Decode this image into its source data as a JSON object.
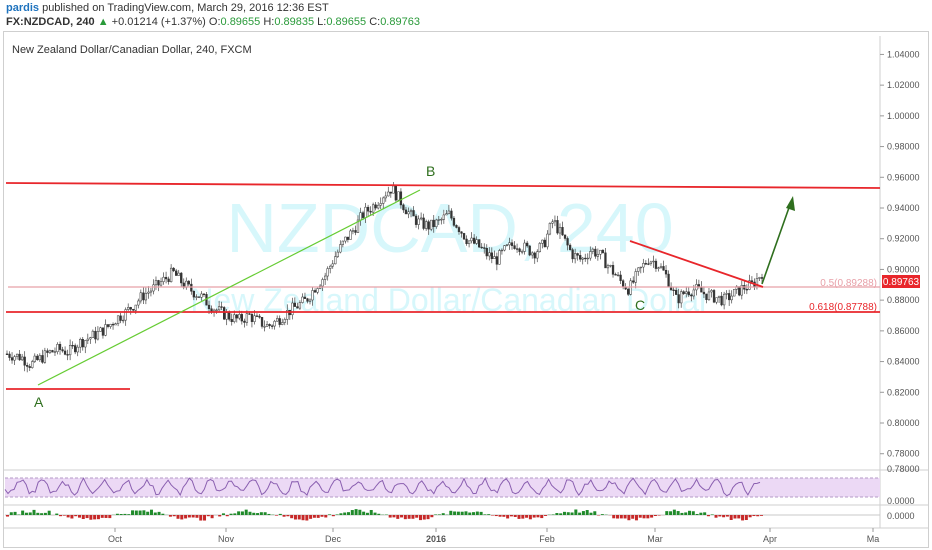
{
  "header": {
    "author": "pardis",
    "published_text": " published on TradingView.com, March 29, 2016 12:36 EST",
    "symbol": "FX:NZDCAD, 240",
    "change_arrow": "▲",
    "change": "+0.01214 (+1.37%)",
    "o_label": "O:",
    "o_value": "0.89655",
    "h_label": "H:",
    "h_value": "0.89835",
    "l_label": "L:",
    "l_value": "0.89655",
    "c_label": "C:",
    "c_value": "0.89763"
  },
  "chart_data": {
    "type": "candlestick",
    "title": "New Zealand Dollar/Canadian Dollar, 240, FXCM",
    "watermark_symbol": "NZDCAD, 240",
    "watermark_name": "New Zealand Dollar/Canadian Dollar",
    "y_ticks": [
      "1.04000",
      "1.02000",
      "1.00000",
      "0.98000",
      "0.96000",
      "0.94000",
      "0.92000",
      "0.90000",
      "0.88000",
      "0.86000",
      "0.84000",
      "0.82000",
      "0.80000",
      "0.78000"
    ],
    "y_tick_values": [
      1.04,
      1.02,
      1.0,
      0.98,
      0.96,
      0.94,
      0.92,
      0.9,
      0.88,
      0.86,
      0.84,
      0.82,
      0.8,
      0.78
    ],
    "ylim": [
      0.772,
      1.052
    ],
    "x_ticks": [
      "Oct",
      "Nov",
      "Dec",
      "2016",
      "Feb",
      "Mar",
      "Apr",
      "Ma"
    ],
    "last_price": "0.89763",
    "fib_levels": [
      {
        "label": "0.5(0.89288)",
        "value": 0.89288,
        "color": "#e8a0a8"
      },
      {
        "label": "0.618(0.87788)",
        "value": 0.87788,
        "color": "#e8262b"
      }
    ],
    "wave_labels": [
      "A",
      "B",
      "C"
    ],
    "price_path": [
      [
        0,
        0.845
      ],
      [
        3,
        0.843
      ],
      [
        5,
        0.838
      ],
      [
        7,
        0.842
      ],
      [
        9,
        0.846
      ],
      [
        11,
        0.848
      ],
      [
        13,
        0.846
      ],
      [
        15,
        0.852
      ],
      [
        17,
        0.855
      ],
      [
        19,
        0.858
      ],
      [
        21,
        0.862
      ],
      [
        23,
        0.868
      ],
      [
        25,
        0.872
      ],
      [
        27,
        0.878
      ],
      [
        29,
        0.884
      ],
      [
        31,
        0.888
      ],
      [
        33,
        0.893
      ],
      [
        35,
        0.898
      ],
      [
        37,
        0.891
      ],
      [
        39,
        0.886
      ],
      [
        41,
        0.882
      ],
      [
        43,
        0.876
      ],
      [
        45,
        0.872
      ],
      [
        47,
        0.869
      ],
      [
        49,
        0.867
      ],
      [
        51,
        0.87
      ],
      [
        53,
        0.866
      ],
      [
        55,
        0.863
      ],
      [
        57,
        0.867
      ],
      [
        59,
        0.872
      ],
      [
        61,
        0.876
      ],
      [
        63,
        0.88
      ],
      [
        65,
        0.889
      ],
      [
        67,
        0.896
      ],
      [
        69,
        0.908
      ],
      [
        71,
        0.918
      ],
      [
        73,
        0.926
      ],
      [
        75,
        0.936
      ],
      [
        77,
        0.941
      ],
      [
        79,
        0.948
      ],
      [
        81,
        0.953
      ],
      [
        83,
        0.944
      ],
      [
        85,
        0.935
      ],
      [
        87,
        0.93
      ],
      [
        89,
        0.928
      ],
      [
        91,
        0.931
      ],
      [
        93,
        0.936
      ],
      [
        95,
        0.928
      ],
      [
        97,
        0.919
      ],
      [
        99,
        0.916
      ],
      [
        101,
        0.91
      ],
      [
        103,
        0.906
      ],
      [
        105,
        0.913
      ],
      [
        107,
        0.917
      ],
      [
        109,
        0.914
      ],
      [
        111,
        0.911
      ],
      [
        113,
        0.916
      ],
      [
        115,
        0.932
      ],
      [
        117,
        0.921
      ],
      [
        119,
        0.91
      ],
      [
        121,
        0.906
      ],
      [
        123,
        0.913
      ],
      [
        125,
        0.909
      ],
      [
        127,
        0.901
      ],
      [
        129,
        0.893
      ],
      [
        131,
        0.887
      ],
      [
        133,
        0.898
      ],
      [
        135,
        0.907
      ],
      [
        137,
        0.904
      ],
      [
        139,
        0.895
      ],
      [
        141,
        0.88
      ],
      [
        143,
        0.886
      ],
      [
        145,
        0.887
      ],
      [
        147,
        0.884
      ],
      [
        149,
        0.882
      ],
      [
        151,
        0.88
      ],
      [
        153,
        0.884
      ],
      [
        155,
        0.888
      ],
      [
        157,
        0.89
      ],
      [
        159,
        0.898
      ]
    ],
    "rsi": {
      "ylabels": [
        "0.78000",
        "0.0000"
      ]
    },
    "macd": {
      "ylabels": [
        "0.0000"
      ]
    }
  }
}
